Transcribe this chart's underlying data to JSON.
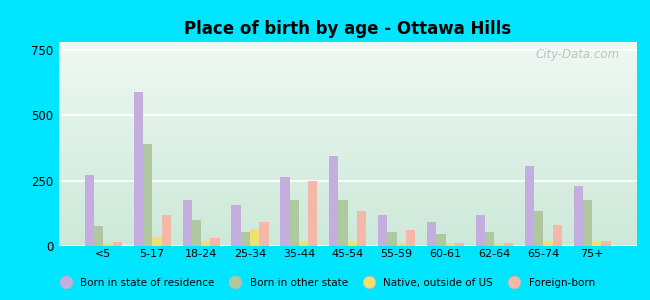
{
  "title": "Place of birth by age - Ottawa Hills",
  "categories": [
    "<5",
    "5-17",
    "18-24",
    "25-34",
    "35-44",
    "45-54",
    "55-59",
    "60-61",
    "62-64",
    "65-74",
    "75+"
  ],
  "series": {
    "Born in state of residence": [
      270,
      590,
      175,
      155,
      265,
      345,
      120,
      90,
      120,
      305,
      230
    ],
    "Born in other state": [
      75,
      390,
      100,
      55,
      175,
      175,
      55,
      45,
      55,
      135,
      175
    ],
    "Native, outside of US": [
      10,
      35,
      20,
      65,
      15,
      15,
      10,
      10,
      10,
      15,
      15
    ],
    "Foreign-born": [
      15,
      120,
      30,
      90,
      250,
      135,
      60,
      10,
      10,
      80,
      20
    ]
  },
  "colors": {
    "Born in state of residence": "#c4aee0",
    "Born in other state": "#b0c8a0",
    "Native, outside of US": "#f0e070",
    "Foreign-born": "#f5b8a8"
  },
  "ylim": [
    0,
    780
  ],
  "yticks": [
    0,
    250,
    500,
    750
  ],
  "fig_bg": "#00e5ff",
  "watermark": "City-Data.com",
  "bar_width": 0.19,
  "legend_labels": [
    "Born in state of residence",
    "Born in other state",
    "Native, outside of US",
    "Foreign-born"
  ]
}
